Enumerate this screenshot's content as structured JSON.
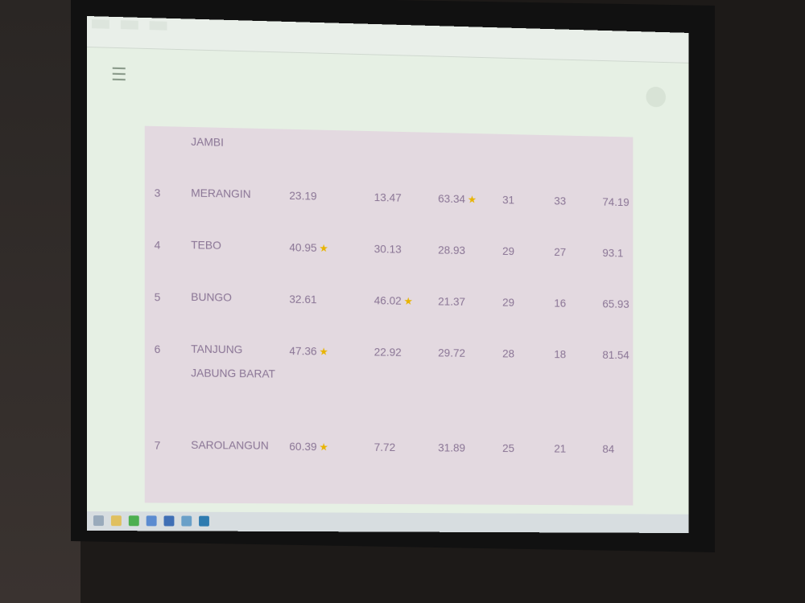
{
  "table": {
    "header_partial": "JAMBI",
    "rows": [
      {
        "no": "3",
        "name": "MERANGIN",
        "c1": "23.19",
        "c1_star": false,
        "c2": "13.47",
        "c2_star": false,
        "c3": "63.34",
        "c3_star": true,
        "c4": "31",
        "c5": "33",
        "c6": "74.19"
      },
      {
        "no": "4",
        "name": "TEBO",
        "c1": "40.95",
        "c1_star": true,
        "c2": "30.13",
        "c2_star": false,
        "c3": "28.93",
        "c3_star": false,
        "c4": "29",
        "c5": "27",
        "c6": "93.1"
      },
      {
        "no": "5",
        "name": "BUNGO",
        "c1": "32.61",
        "c1_star": false,
        "c2": "46.02",
        "c2_star": true,
        "c3": "21.37",
        "c3_star": false,
        "c4": "29",
        "c5": "16",
        "c6": "65.93"
      },
      {
        "no": "6",
        "name": "TANJUNG JABUNG BARAT",
        "c1": "47.36",
        "c1_star": true,
        "c2": "22.92",
        "c2_star": false,
        "c3": "29.72",
        "c3_star": false,
        "c4": "28",
        "c5": "18",
        "c6": "81.54"
      },
      {
        "no": "7",
        "name": "SAROLANGUN",
        "c1": "60.39",
        "c1_star": true,
        "c2": "7.72",
        "c2_star": false,
        "c3": "31.89",
        "c3_star": false,
        "c4": "25",
        "c5": "21",
        "c6": "84"
      }
    ]
  },
  "icons": {
    "menu": "hamburger-icon",
    "star": "star-icon",
    "star_color": "#e8b400"
  }
}
